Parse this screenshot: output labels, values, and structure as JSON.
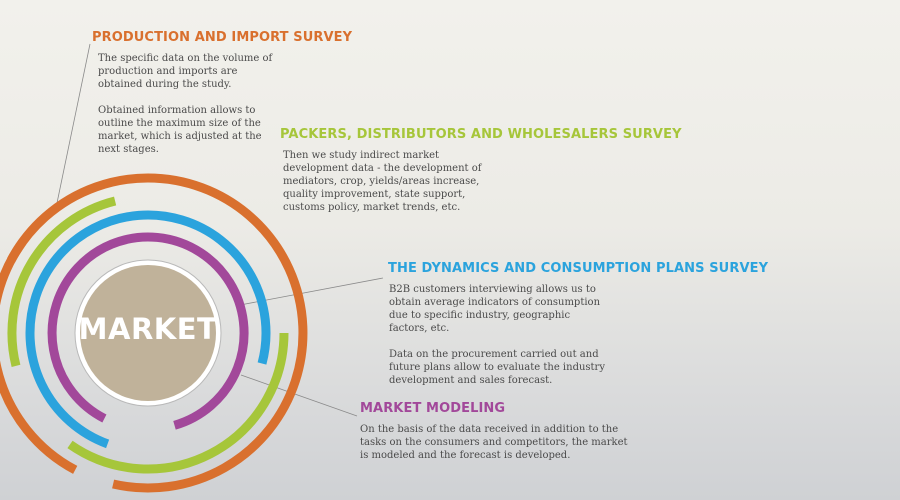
{
  "center_label": "MARKET",
  "colors": {
    "orange": "#d9702e",
    "green": "#a6c63a",
    "blue": "#2ba3dd",
    "purple": "#a2489a",
    "center": "#c0b29a"
  },
  "sections": {
    "production": {
      "title": "PRODUCTION AND IMPORT SURVEY",
      "paragraphs": [
        "The specific data on the volume of production and imports are obtained during the study.",
        "Obtained information allows to outline the maximum size of the market, which is adjusted at the next stages."
      ]
    },
    "packers": {
      "title": "PACKERS, DISTRIBUTORS AND WHOLESALERS SURVEY",
      "paragraphs": [
        "Then we study indirect market development data - the development of mediators, crop, yields/areas increase, quality improvement, state support, customs policy, market trends, etc."
      ]
    },
    "dynamics": {
      "title": "THE DYNAMICS AND CONSUMPTION PLANS SURVEY",
      "paragraphs": [
        "B2B customers interviewing  allows us to obtain average indicators of consumption due to specific industry, geographic  factors, etc.",
        "Data on the procurement carried out and future plans allow to evaluate the industry development and sales forecast."
      ]
    },
    "modeling": {
      "title": "MARKET MODELING",
      "paragraphs": [
        "On the basis of the data received in addition to the tasks on the consumers and competitors, the market is modeled and the forecast is  developed."
      ]
    }
  }
}
